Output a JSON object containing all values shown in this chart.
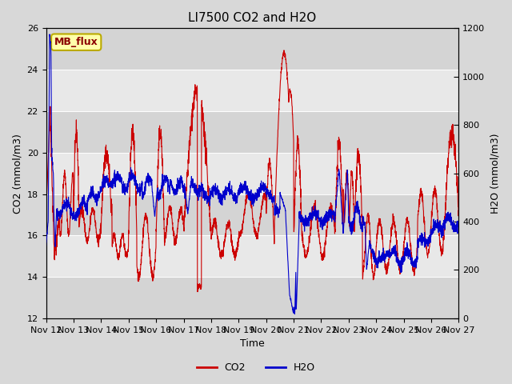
{
  "title": "LI7500 CO2 and H2O",
  "xlabel": "Time",
  "ylabel_left": "CO2 (mmol/m3)",
  "ylabel_right": "H2O (mmol/m3)",
  "ylim_left": [
    12,
    26
  ],
  "ylim_right": [
    0,
    1200
  ],
  "yticks_left": [
    12,
    14,
    16,
    18,
    20,
    22,
    24,
    26
  ],
  "yticks_right": [
    0,
    200,
    400,
    600,
    800,
    1000,
    1200
  ],
  "xtick_labels": [
    "Nov 12",
    "Nov 13",
    "Nov 14",
    "Nov 15",
    "Nov 16",
    "Nov 17",
    "Nov 18",
    "Nov 19",
    "Nov 20",
    "Nov 21",
    "Nov 22",
    "Nov 23",
    "Nov 24",
    "Nov 25",
    "Nov 26",
    "Nov 27"
  ],
  "co2_color": "#cc0000",
  "h2o_color": "#0000cc",
  "line_width": 0.8,
  "fig_bg_color": "#d8d8d8",
  "plot_bg_color": "#e8e8e8",
  "grid_color": "#ffffff",
  "legend_label_co2": "CO2",
  "legend_label_h2o": "H2O",
  "annotation_text": "MB_flux",
  "title_fontsize": 11,
  "axis_label_fontsize": 9,
  "tick_fontsize": 8,
  "annot_fontsize": 9
}
